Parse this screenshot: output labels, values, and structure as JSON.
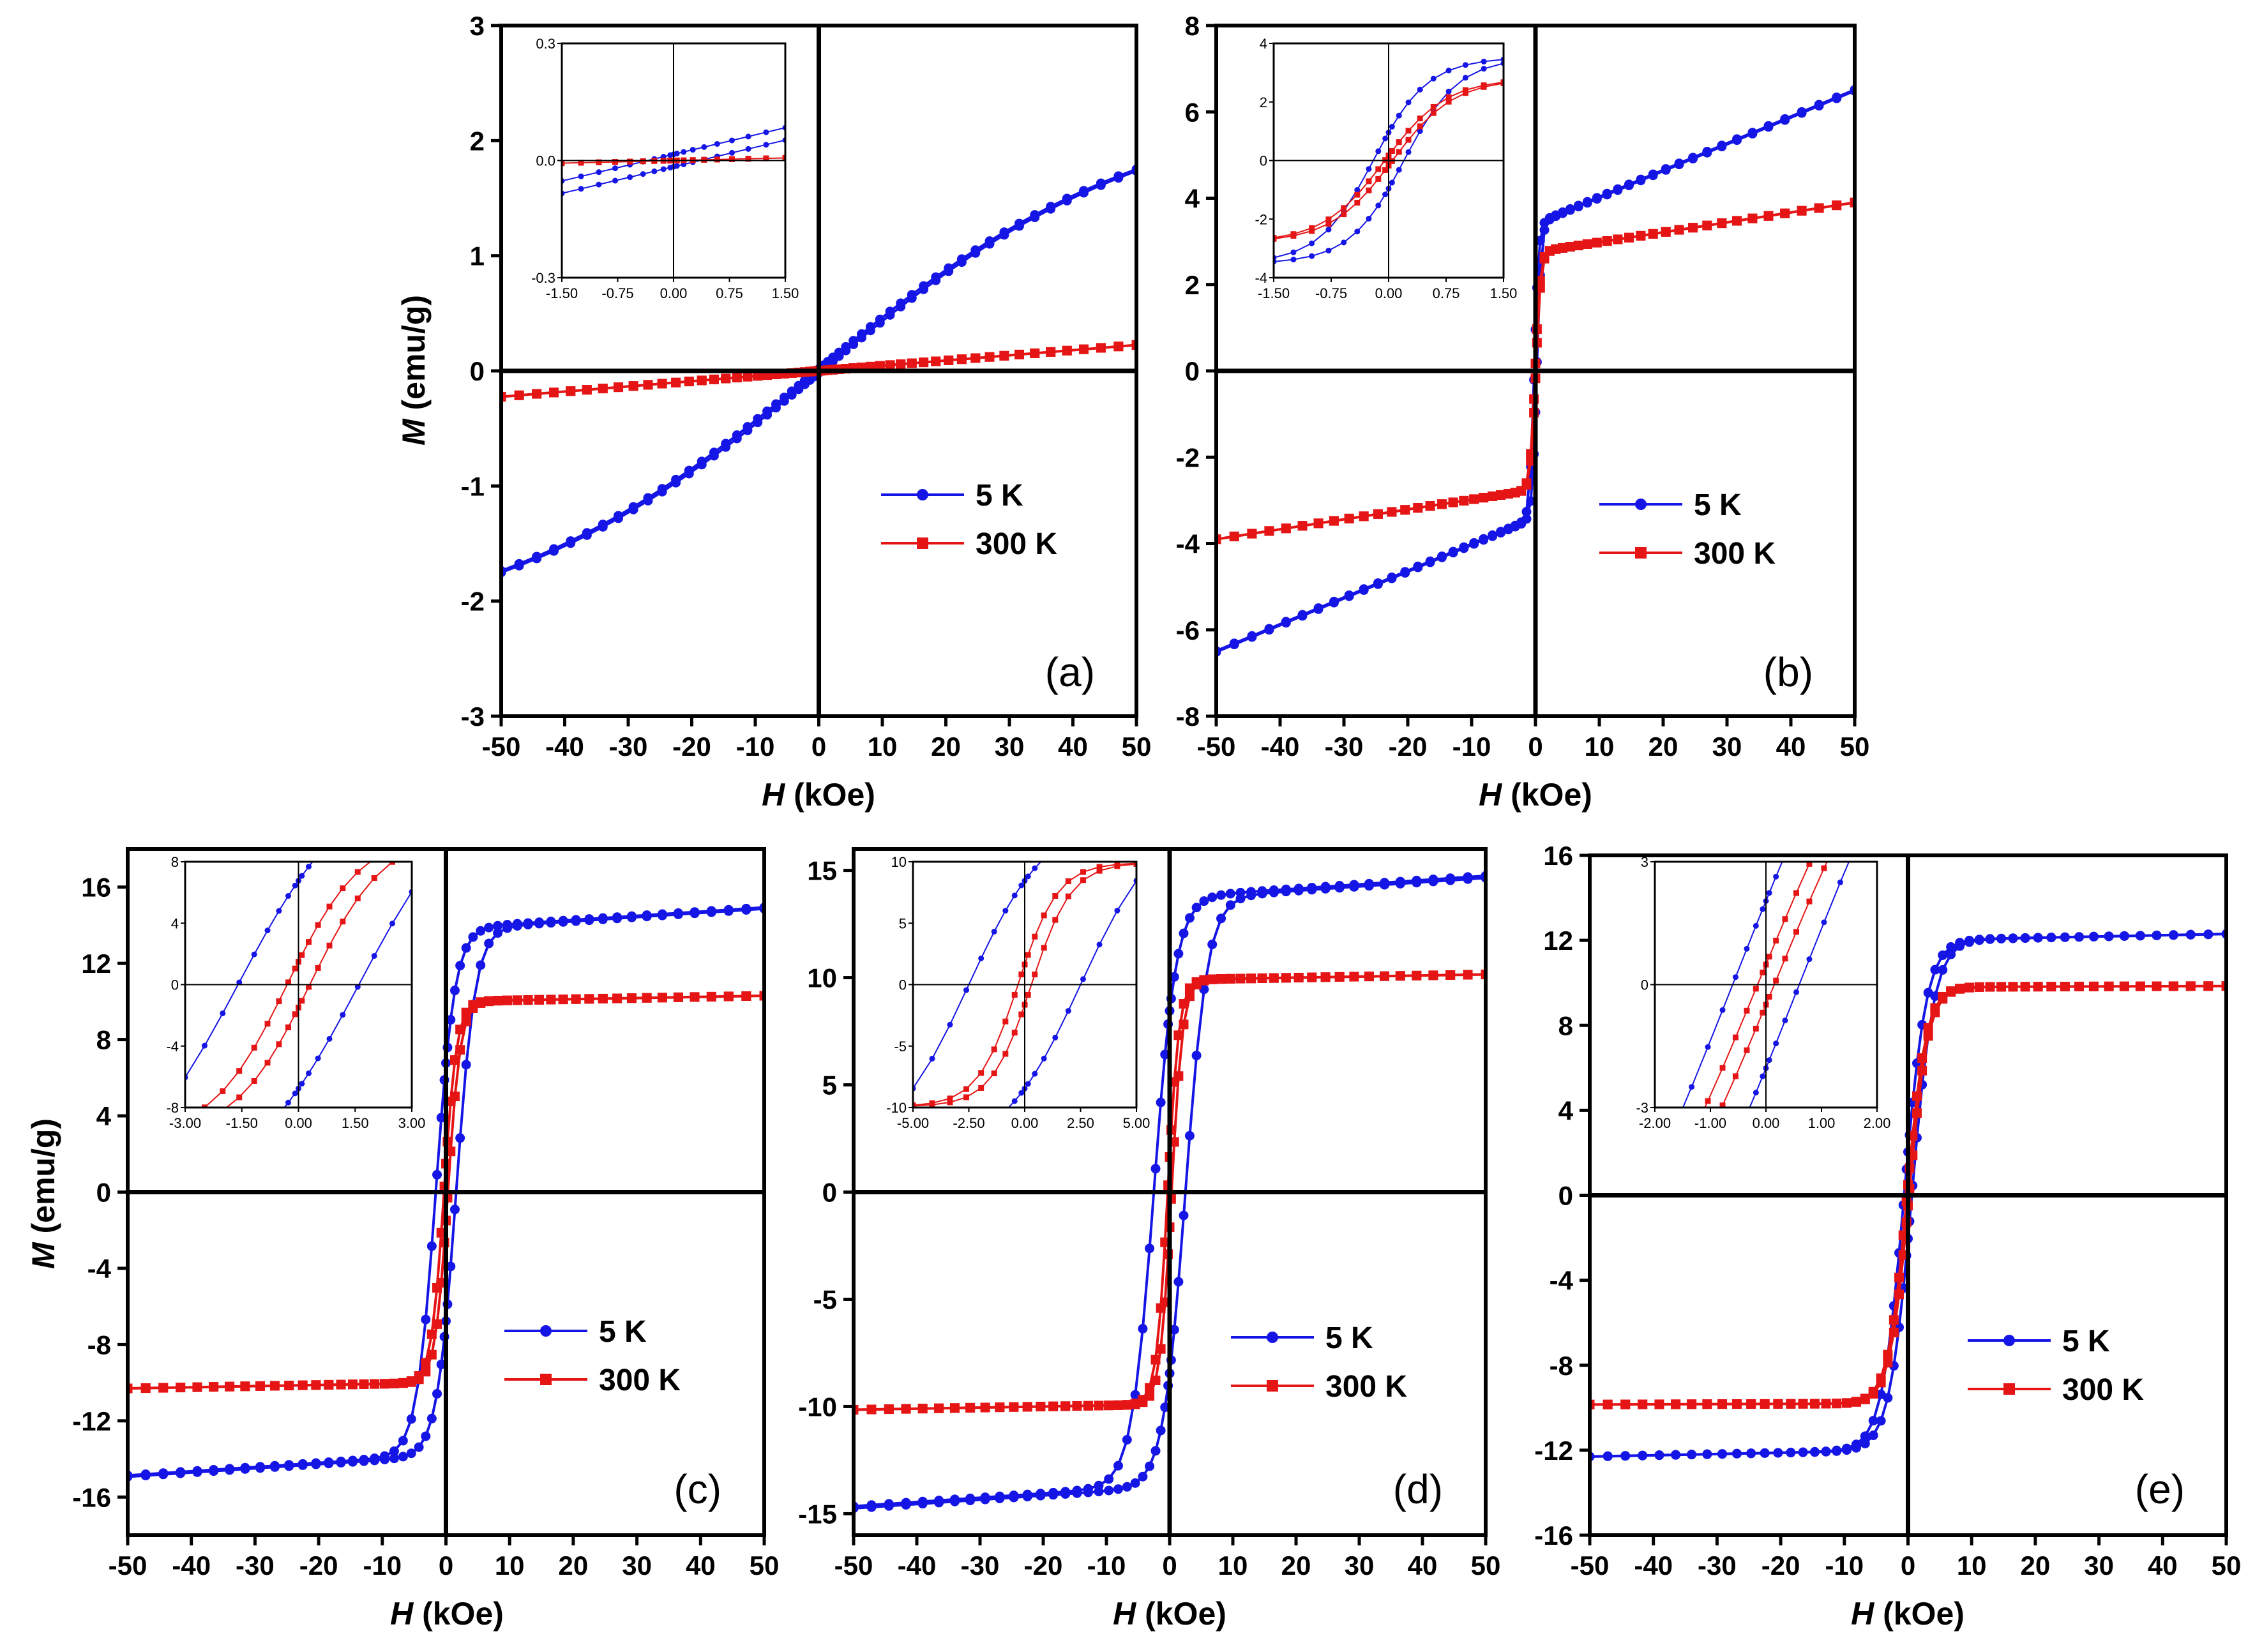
{
  "figure": {
    "ylabel_symbol": "M",
    "ylabel_units": "(emu/g)",
    "xlabel_symbol": "H",
    "xlabel_units": "(kOe)"
  },
  "legend": {
    "label_5K": "5 K",
    "label_300K": "300 K"
  },
  "colors": {
    "5K": "#1515e6",
    "300K": "#e61515",
    "axis": "#000000"
  },
  "chart_data": [
    {
      "panel": "(a)",
      "type": "line",
      "xlabel": "H (kOe)",
      "ylabel": "M (emu/g)",
      "xlim": [
        -50,
        50
      ],
      "ylim": [
        -3,
        3
      ],
      "xticks": [
        -50,
        -40,
        -30,
        -20,
        -10,
        0,
        10,
        20,
        30,
        40,
        50
      ],
      "yticks": [
        -3,
        -2,
        -1,
        0,
        1,
        2,
        3
      ],
      "ytick_labels": [
        "-3",
        "-2",
        "-1",
        "0",
        "1",
        "2",
        "3"
      ],
      "series": [
        {
          "name": "5 K",
          "model": "langevin",
          "Ms": 3.0,
          "a": 22,
          "Hc": 0.35,
          "lin": 0
        },
        {
          "name": "300 K",
          "model": "linear",
          "slope": 0.0045,
          "Hc": 0
        }
      ],
      "inset": {
        "xlim": [
          -1.5,
          1.5
        ],
        "ylim": [
          -0.3,
          0.3
        ],
        "xtick_labels": [
          "-1.50",
          "-0.75",
          "0.00",
          "0.75",
          "1.50"
        ],
        "ytick_values": [
          -0.3,
          0,
          0.3
        ],
        "ytick_labels": [
          "-0.3",
          "0.0",
          "0.3"
        ]
      }
    },
    {
      "panel": "(b)",
      "type": "line",
      "xlabel": "H (kOe)",
      "ylabel": "M (emu/g)",
      "xlim": [
        -50,
        50
      ],
      "ylim": [
        -8,
        8
      ],
      "xticks": [
        -50,
        -40,
        -30,
        -20,
        -10,
        0,
        10,
        20,
        30,
        40,
        50
      ],
      "yticks": [
        -8,
        -6,
        -4,
        -2,
        0,
        2,
        4,
        6,
        8
      ],
      "ytick_labels": [
        "-8",
        "-6",
        "-4",
        "-2",
        "0",
        "2",
        "4",
        "6",
        "8"
      ],
      "series": [
        {
          "name": "5 K",
          "model": "tanh",
          "Ms": 3.4,
          "w": 0.7,
          "Hc": 0.2,
          "lin": 0.062
        },
        {
          "name": "300 K",
          "model": "tanh",
          "Ms": 2.75,
          "w": 0.8,
          "Hc": 0.05,
          "lin": 0.023
        }
      ],
      "inset": {
        "xlim": [
          -1.5,
          1.5
        ],
        "ylim": [
          -4,
          4
        ],
        "xtick_labels": [
          "-1.50",
          "-0.75",
          "0.00",
          "0.75",
          "1.50"
        ],
        "ytick_values": [
          -4,
          -2,
          0,
          2,
          4
        ],
        "ytick_labels": [
          "-4",
          "-2",
          "0",
          "2",
          "4"
        ]
      }
    },
    {
      "panel": "(c)",
      "type": "line",
      "xlabel": "H (kOe)",
      "ylabel": "M (emu/g)",
      "xlim": [
        -50,
        50
      ],
      "ylim": [
        -18,
        18
      ],
      "xticks": [
        -50,
        -40,
        -30,
        -20,
        -10,
        0,
        10,
        20,
        30,
        40,
        50
      ],
      "yticks": [
        -16,
        -12,
        -8,
        -4,
        0,
        4,
        8,
        12,
        16
      ],
      "ytick_labels": [
        "-16",
        "-12",
        "-8",
        "-4",
        "0",
        "4",
        "8",
        "12",
        "16"
      ],
      "series": [
        {
          "name": "5 K",
          "model": "tanh",
          "Ms": 13.8,
          "w": 3.0,
          "Hc": 1.6,
          "lin": 0.022
        },
        {
          "name": "300 K",
          "model": "tanh",
          "Ms": 10.0,
          "w": 2.0,
          "Hc": 0.3,
          "lin": 0.006
        }
      ],
      "inset": {
        "xlim": [
          -3,
          3
        ],
        "ylim": [
          -8,
          8
        ],
        "xtick_labels": [
          "-3.00",
          "-1.50",
          "0.00",
          "1.50",
          "3.00"
        ],
        "ytick_values": [
          -8,
          -4,
          0,
          4,
          8
        ],
        "ytick_labels": [
          "-8",
          "-4",
          "0",
          "4",
          "8"
        ]
      }
    },
    {
      "panel": "(d)",
      "type": "line",
      "xlabel": "H (kOe)",
      "ylabel": "M (emu/g)",
      "xlim": [
        -50,
        50
      ],
      "ylim": [
        -16,
        16
      ],
      "xticks": [
        -50,
        -40,
        -30,
        -20,
        -10,
        0,
        10,
        20,
        30,
        40,
        50
      ],
      "yticks": [
        -15,
        -10,
        -5,
        0,
        5,
        10,
        15
      ],
      "ytick_labels": [
        "-15",
        "-10",
        "-5",
        "0",
        "5",
        "10",
        "15"
      ],
      "series": [
        {
          "name": "5 K",
          "model": "tanh",
          "Ms": 13.7,
          "w": 3.5,
          "Hc": 2.5,
          "lin": 0.02
        },
        {
          "name": "300 K",
          "model": "tanh",
          "Ms": 9.9,
          "w": 1.8,
          "Hc": 0.3,
          "lin": 0.005
        }
      ],
      "inset": {
        "xlim": [
          -5,
          5
        ],
        "ylim": [
          -10,
          10
        ],
        "xtick_labels": [
          "-5.00",
          "-2.50",
          "0.00",
          "2.50",
          "5.00"
        ],
        "ytick_values": [
          -10,
          -5,
          0,
          5,
          10
        ],
        "ytick_labels": [
          "-10",
          "-5",
          "0",
          "5",
          "10"
        ]
      }
    },
    {
      "panel": "(e)",
      "type": "line",
      "xlabel": "H (kOe)",
      "ylabel": "M (emu/g)",
      "xlim": [
        -50,
        50
      ],
      "ylim": [
        -16,
        16
      ],
      "xticks": [
        -50,
        -40,
        -30,
        -20,
        -10,
        0,
        10,
        20,
        30,
        40,
        50
      ],
      "yticks": [
        -16,
        -12,
        -8,
        -4,
        0,
        4,
        8,
        12,
        16
      ],
      "ytick_labels": [
        "-16",
        "-12",
        "-8",
        "-4",
        "0",
        "4",
        "8",
        "12",
        "16"
      ],
      "series": [
        {
          "name": "5 K",
          "model": "tanh",
          "Ms": 12.0,
          "w": 3.5,
          "Hc": 0.6,
          "lin": 0.006
        },
        {
          "name": "300 K",
          "model": "tanh",
          "Ms": 9.8,
          "w": 3.0,
          "Hc": 0.15,
          "lin": 0.001
        }
      ],
      "inset": {
        "xlim": [
          -2,
          2
        ],
        "ylim": [
          -3,
          3
        ],
        "xtick_labels": [
          "-2.00",
          "-1.00",
          "0.00",
          "1.00",
          "2.00"
        ],
        "ytick_values": [
          -3,
          0,
          3
        ],
        "ytick_labels": [
          "-3",
          "0",
          "3"
        ]
      }
    }
  ]
}
